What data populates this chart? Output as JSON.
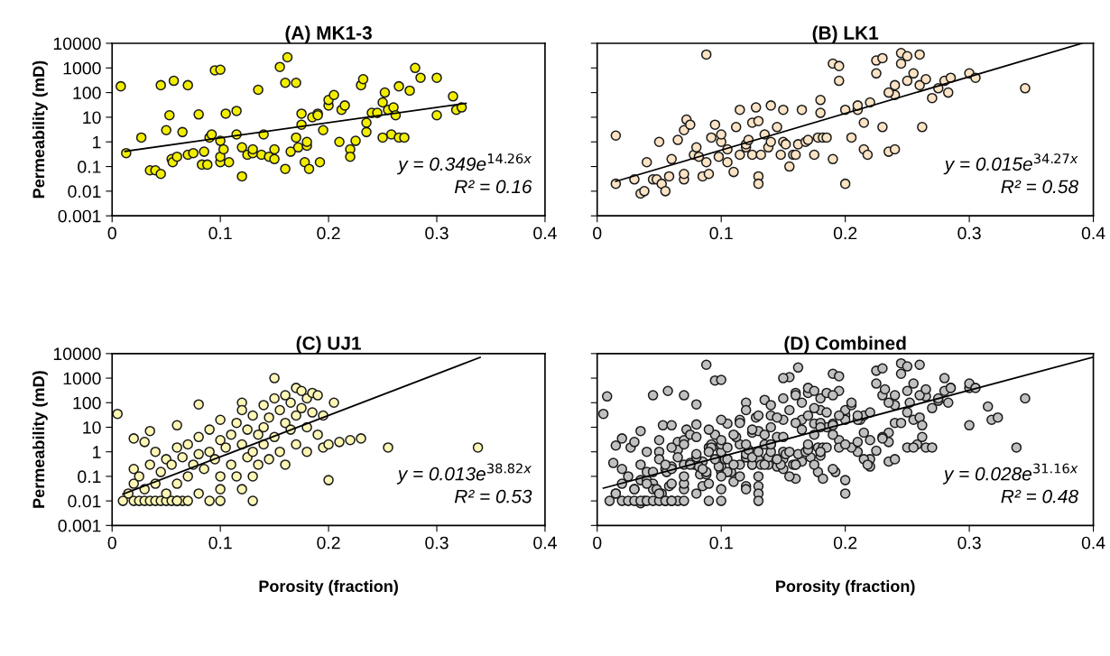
{
  "chart_data": [
    {
      "type": "scatter",
      "title": "(A) MK1-3",
      "ylabel": "Permeability (mD)",
      "log": "y",
      "xlim": [
        0,
        0.4
      ],
      "xticks": [
        0,
        0.1,
        0.2,
        0.3,
        0.4
      ],
      "ylim": [
        0.001,
        10000
      ],
      "yticks": [
        0.001,
        0.01,
        0.1,
        1,
        10,
        100,
        1000,
        10000
      ],
      "annotations": [
        "y = 0.349e$^{14.26x}$",
        "R² = 0.16"
      ],
      "series": [
        {
          "marker": "circle",
          "color": "#f2ee00",
          "x": [
            0.008,
            0.013,
            0.027,
            0.035,
            0.04,
            0.045,
            0.045,
            0.05,
            0.053,
            0.055,
            0.056,
            0.057,
            0.06,
            0.065,
            0.07,
            0.07,
            0.075,
            0.08,
            0.083,
            0.085,
            0.088,
            0.09,
            0.092,
            0.095,
            0.1,
            0.1,
            0.1,
            0.1,
            0.103,
            0.105,
            0.108,
            0.115,
            0.115,
            0.12,
            0.12,
            0.125,
            0.13,
            0.13,
            0.135,
            0.138,
            0.14,
            0.145,
            0.15,
            0.15,
            0.155,
            0.16,
            0.16,
            0.162,
            0.165,
            0.17,
            0.17,
            0.172,
            0.175,
            0.175,
            0.178,
            0.18,
            0.18,
            0.182,
            0.185,
            0.19,
            0.19,
            0.192,
            0.195,
            0.2,
            0.2,
            0.205,
            0.21,
            0.212,
            0.215,
            0.22,
            0.22,
            0.225,
            0.23,
            0.232,
            0.235,
            0.235,
            0.24,
            0.245,
            0.25,
            0.252,
            0.255,
            0.258,
            0.26,
            0.262,
            0.265,
            0.265,
            0.27,
            0.275,
            0.28,
            0.285,
            0.3,
            0.3,
            0.315,
            0.318,
            0.323,
            0.25
          ],
          "values": [
            180,
            0.35,
            1.5,
            0.07,
            0.07,
            200,
            0.05,
            3,
            12,
            0.2,
            0.15,
            300,
            0.25,
            2.5,
            0.3,
            200,
            0.35,
            13,
            0.12,
            0.4,
            0.12,
            1.5,
            2,
            800,
            850,
            1.1,
            0.15,
            0.25,
            0.5,
            14,
            0.15,
            18,
            2,
            0.04,
            0.6,
            0.3,
            0.35,
            0.5,
            130,
            0.3,
            2,
            0.25,
            0.2,
            0.5,
            1100,
            0.08,
            250,
            2700,
            0.4,
            1.5,
            250,
            0.6,
            5,
            14,
            0.15,
            0.7,
            1,
            0.08,
            10,
            14,
            12,
            0.15,
            3,
            30,
            50,
            80,
            1,
            20,
            30,
            0.5,
            0.25,
            1.1,
            200,
            350,
            6,
            2.5,
            15,
            15,
            40,
            100,
            20,
            2,
            25,
            12,
            180,
            1.5,
            1.5,
            120,
            1000,
            400,
            400,
            12,
            70,
            20,
            25,
            1.5
          ]
        },
        {
          "type": "line",
          "color": "#000000",
          "x": [
            0.012,
            0.327
          ],
          "values": [
            0.414,
            37.0
          ]
        }
      ]
    },
    {
      "type": "scatter",
      "title": "(B) LK1",
      "log": "y",
      "tick_labels": "x",
      "xlim": [
        0,
        0.4
      ],
      "xticks": [
        0,
        0.1,
        0.2,
        0.3,
        0.4
      ],
      "ylim": [
        0.001,
        10000
      ],
      "yticks": [
        0.001,
        0.01,
        0.1,
        1,
        10,
        100,
        1000,
        10000
      ],
      "annotations": [
        "y = 0.015e$^{34.27x}$",
        "R² = 0.58"
      ],
      "series": [
        {
          "marker": "circle",
          "color": "#fbe3c4",
          "x": [
            0.015,
            0.015,
            0.03,
            0.035,
            0.038,
            0.04,
            0.045,
            0.048,
            0.05,
            0.052,
            0.055,
            0.058,
            0.06,
            0.065,
            0.07,
            0.07,
            0.07,
            0.072,
            0.075,
            0.078,
            0.08,
            0.082,
            0.085,
            0.088,
            0.088,
            0.09,
            0.092,
            0.095,
            0.098,
            0.1,
            0.1,
            0.105,
            0.105,
            0.11,
            0.112,
            0.115,
            0.115,
            0.12,
            0.12,
            0.122,
            0.125,
            0.125,
            0.128,
            0.13,
            0.13,
            0.13,
            0.132,
            0.135,
            0.138,
            0.14,
            0.14,
            0.145,
            0.148,
            0.15,
            0.15,
            0.152,
            0.155,
            0.158,
            0.16,
            0.162,
            0.165,
            0.168,
            0.17,
            0.175,
            0.178,
            0.18,
            0.18,
            0.182,
            0.185,
            0.19,
            0.19,
            0.195,
            0.195,
            0.2,
            0.2,
            0.205,
            0.21,
            0.21,
            0.215,
            0.215,
            0.218,
            0.22,
            0.225,
            0.225,
            0.23,
            0.23,
            0.235,
            0.24,
            0.24,
            0.24,
            0.245,
            0.245,
            0.25,
            0.25,
            0.255,
            0.26,
            0.262,
            0.265,
            0.27,
            0.275,
            0.28,
            0.283,
            0.285,
            0.3,
            0.305,
            0.345,
            0.26,
            0.235
          ],
          "values": [
            1.8,
            0.02,
            0.03,
            0.008,
            0.01,
            0.15,
            0.03,
            0.03,
            1,
            0.02,
            0.01,
            0.04,
            0.2,
            1.2,
            0.03,
            0.05,
            3,
            8,
            5,
            0.3,
            0.6,
            0.25,
            0.04,
            0.15,
            3500,
            0.05,
            1.5,
            5,
            0.25,
            1,
            2,
            0.5,
            0.15,
            0.06,
            4,
            20,
            0.3,
            0.6,
            0.8,
            1.2,
            6,
            0.3,
            25,
            7,
            0.04,
            0.02,
            0.3,
            2,
            0.6,
            30,
            1,
            4,
            0.3,
            20,
            1,
            0.8,
            0.1,
            0.3,
            0.3,
            0.8,
            20,
            1,
            1.2,
            0.3,
            1.5,
            15,
            50,
            1.5,
            1.5,
            0.2,
            1500,
            300,
            1200,
            0.02,
            20,
            1.5,
            20,
            30,
            6,
            0.5,
            0.3,
            40,
            600,
            2000,
            2500,
            4,
            0.4,
            0.5,
            80,
            200,
            1500,
            4000,
            3000,
            300,
            600,
            200,
            4,
            350,
            60,
            150,
            300,
            100,
            400,
            600,
            400,
            150,
            3500,
            100
          ]
        },
        {
          "type": "line",
          "color": "#000000",
          "x": [
            0.015,
            0.391
          ],
          "values": [
            0.025,
            10000
          ]
        }
      ]
    },
    {
      "type": "scatter",
      "title": "(C) UJ1",
      "xlabel": "Porosity (fraction)",
      "ylabel": "Permeability (mD)",
      "log": "y",
      "xlim": [
        0,
        0.4
      ],
      "xticks": [
        0,
        0.1,
        0.2,
        0.3,
        0.4
      ],
      "ylim": [
        0.001,
        10000
      ],
      "yticks": [
        0.001,
        0.01,
        0.1,
        1,
        10,
        100,
        1000,
        10000
      ],
      "annotations": [
        "y = 0.013e$^{38.82x}$",
        "R² = 0.53"
      ],
      "series": [
        {
          "marker": "circle",
          "color": "#fdf6b4",
          "x": [
            0.02,
            0.025,
            0.03,
            0.035,
            0.04,
            0.045,
            0.05,
            0.055,
            0.06,
            0.065,
            0.07,
            0.09,
            0.1,
            0.015,
            0.02,
            0.02,
            0.02,
            0.025,
            0.03,
            0.03,
            0.035,
            0.035,
            0.04,
            0.04,
            0.045,
            0.05,
            0.05,
            0.055,
            0.06,
            0.06,
            0.06,
            0.065,
            0.07,
            0.07,
            0.075,
            0.08,
            0.08,
            0.08,
            0.085,
            0.09,
            0.09,
            0.095,
            0.1,
            0.1,
            0.1,
            0.105,
            0.11,
            0.11,
            0.115,
            0.115,
            0.12,
            0.12,
            0.12,
            0.125,
            0.125,
            0.13,
            0.13,
            0.13,
            0.135,
            0.135,
            0.14,
            0.14,
            0.14,
            0.145,
            0.145,
            0.15,
            0.15,
            0.15,
            0.155,
            0.155,
            0.16,
            0.16,
            0.16,
            0.165,
            0.165,
            0.17,
            0.17,
            0.17,
            0.175,
            0.175,
            0.18,
            0.18,
            0.18,
            0.185,
            0.185,
            0.19,
            0.19,
            0.195,
            0.195,
            0.2,
            0.2,
            0.205,
            0.21,
            0.22,
            0.23,
            0.255,
            0.338,
            0.005,
            0.01,
            0.06,
            0.08,
            0.1,
            0.12,
            0.13
          ],
          "values": [
            0.01,
            0.01,
            0.01,
            0.01,
            0.01,
            0.01,
            0.01,
            0.01,
            0.01,
            0.01,
            0.01,
            0.01,
            0.01,
            0.02,
            0.05,
            0.2,
            3.5,
            0.1,
            2.5,
            0.03,
            7,
            0.3,
            0.05,
            1,
            0.15,
            0.5,
            0.02,
            0.3,
            12,
            1.5,
            0.05,
            0.6,
            2,
            0.1,
            0.3,
            85,
            4,
            0.8,
            0.2,
            1,
            8,
            0.5,
            3,
            20,
            0.1,
            1.5,
            5,
            0.3,
            15,
            0.1,
            2,
            100,
            50,
            0.6,
            8,
            30,
            1,
            0.1,
            5,
            0.3,
            80,
            10,
            2,
            0.5,
            25,
            1000,
            150,
            4,
            50,
            1,
            200,
            15,
            0.3,
            8,
            100,
            400,
            30,
            2,
            300,
            60,
            150,
            10,
            1,
            250,
            40,
            200,
            5,
            30,
            1.5,
            0.07,
            2,
            100,
            2.5,
            3,
            3.5,
            1.5,
            1.5,
            35,
            0.01,
            0.01,
            0.02,
            0.03,
            0.03,
            0.01
          ]
        },
        {
          "type": "line",
          "color": "#000000",
          "x": [
            0.01,
            0.34
          ],
          "values": [
            0.019,
            7000
          ]
        }
      ]
    },
    {
      "type": "scatter",
      "title": "(D) Combined",
      "xlabel": "Porosity (fraction)",
      "log": "y",
      "tick_labels": "x",
      "xlim": [
        0,
        0.4
      ],
      "xticks": [
        0,
        0.1,
        0.2,
        0.3,
        0.4
      ],
      "ylim": [
        0.001,
        10000
      ],
      "yticks": [
        0.001,
        0.01,
        0.1,
        1,
        10,
        100,
        1000,
        10000
      ],
      "annotations": [
        "y = 0.028e$^{31.16x}$",
        "R² = 0.48"
      ],
      "series": [
        {
          "marker": "circle",
          "color": "#c0c0c0",
          "x": [
            0.008,
            0.013,
            0.027,
            0.035,
            0.04,
            0.045,
            0.045,
            0.05,
            0.053,
            0.055,
            0.056,
            0.057,
            0.06,
            0.065,
            0.07,
            0.07,
            0.075,
            0.08,
            0.083,
            0.085,
            0.088,
            0.09,
            0.092,
            0.095,
            0.1,
            0.1,
            0.1,
            0.1,
            0.103,
            0.105,
            0.108,
            0.115,
            0.115,
            0.12,
            0.12,
            0.125,
            0.13,
            0.135,
            0.138,
            0.14,
            0.145,
            0.15,
            0.15,
            0.155,
            0.16,
            0.16,
            0.162,
            0.165,
            0.17,
            0.17,
            0.172,
            0.175,
            0.175,
            0.178,
            0.18,
            0.18,
            0.182,
            0.185,
            0.19,
            0.19,
            0.192,
            0.195,
            0.2,
            0.2,
            0.205,
            0.21,
            0.212,
            0.215,
            0.22,
            0.22,
            0.225,
            0.23,
            0.232,
            0.235,
            0.235,
            0.24,
            0.245,
            0.25,
            0.252,
            0.255,
            0.258,
            0.26,
            0.262,
            0.265,
            0.265,
            0.27,
            0.275,
            0.28,
            0.285,
            0.3,
            0.3,
            0.315,
            0.318,
            0.323,
            0.25,
            0.015,
            0.015,
            0.03,
            0.035,
            0.038,
            0.04,
            0.045,
            0.048,
            0.05,
            0.052,
            0.055,
            0.058,
            0.06,
            0.065,
            0.07,
            0.07,
            0.07,
            0.072,
            0.075,
            0.078,
            0.08,
            0.082,
            0.085,
            0.088,
            0.088,
            0.09,
            0.092,
            0.095,
            0.098,
            0.1,
            0.1,
            0.105,
            0.105,
            0.11,
            0.112,
            0.115,
            0.115,
            0.12,
            0.12,
            0.122,
            0.125,
            0.125,
            0.128,
            0.13,
            0.13,
            0.13,
            0.132,
            0.135,
            0.138,
            0.14,
            0.14,
            0.145,
            0.148,
            0.15,
            0.15,
            0.152,
            0.155,
            0.158,
            0.16,
            0.162,
            0.165,
            0.168,
            0.17,
            0.175,
            0.178,
            0.18,
            0.18,
            0.182,
            0.185,
            0.19,
            0.19,
            0.195,
            0.195,
            0.2,
            0.2,
            0.205,
            0.21,
            0.21,
            0.215,
            0.215,
            0.218,
            0.22,
            0.225,
            0.225,
            0.23,
            0.23,
            0.235,
            0.24,
            0.24,
            0.24,
            0.245,
            0.245,
            0.25,
            0.25,
            0.255,
            0.26,
            0.262,
            0.265,
            0.27,
            0.275,
            0.28,
            0.283,
            0.285,
            0.3,
            0.305,
            0.345,
            0.26,
            0.235,
            0.02,
            0.025,
            0.03,
            0.035,
            0.04,
            0.045,
            0.05,
            0.055,
            0.06,
            0.065,
            0.07,
            0.09,
            0.1,
            0.015,
            0.02,
            0.02,
            0.02,
            0.025,
            0.03,
            0.03,
            0.035,
            0.035,
            0.04,
            0.04,
            0.045,
            0.05,
            0.05,
            0.055,
            0.06,
            0.06,
            0.06,
            0.065,
            0.07,
            0.07,
            0.075,
            0.08,
            0.08,
            0.08,
            0.085,
            0.09,
            0.09,
            0.095,
            0.1,
            0.1,
            0.1,
            0.105,
            0.11,
            0.11,
            0.115,
            0.115,
            0.12,
            0.12,
            0.12,
            0.125,
            0.125,
            0.13,
            0.13,
            0.13,
            0.135,
            0.135,
            0.14,
            0.14,
            0.14,
            0.145,
            0.145,
            0.15,
            0.15,
            0.15,
            0.155,
            0.155,
            0.16,
            0.16,
            0.16,
            0.165,
            0.165,
            0.17,
            0.17,
            0.17,
            0.175,
            0.175,
            0.18,
            0.18,
            0.18,
            0.185,
            0.185,
            0.19,
            0.19,
            0.195,
            0.195,
            0.2,
            0.2,
            0.205,
            0.21,
            0.22,
            0.23,
            0.255,
            0.338,
            0.005,
            0.01,
            0.06,
            0.08,
            0.1,
            0.12,
            0.13
          ],
          "values": [
            180,
            0.35,
            1.5,
            0.07,
            0.07,
            200,
            0.05,
            3,
            12,
            0.2,
            0.15,
            300,
            0.25,
            2.5,
            0.3,
            200,
            0.35,
            13,
            0.12,
            0.4,
            0.12,
            1.5,
            2,
            800,
            850,
            1.1,
            0.15,
            0.25,
            0.5,
            14,
            0.15,
            18,
            2,
            0.04,
            0.6,
            0.3,
            0.5,
            130,
            0.3,
            2,
            0.25,
            0.2,
            0.5,
            1100,
            0.08,
            250,
            2700,
            0.4,
            1.5,
            250,
            0.6,
            5,
            14,
            0.15,
            0.7,
            1,
            0.08,
            10,
            14,
            12,
            0.15,
            3,
            30,
            50,
            80,
            1,
            20,
            30,
            0.5,
            0.25,
            1.1,
            200,
            350,
            6,
            2.5,
            15,
            15,
            40,
            100,
            20,
            2,
            25,
            12,
            180,
            1.5,
            1.5,
            120,
            1000,
            400,
            400,
            12,
            70,
            20,
            25,
            1.5,
            1.8,
            0.02,
            0.03,
            0.008,
            0.01,
            0.15,
            0.03,
            0.03,
            1,
            0.02,
            0.01,
            0.04,
            0.2,
            1.2,
            0.03,
            0.05,
            3,
            8,
            5,
            0.3,
            0.6,
            0.25,
            0.04,
            0.15,
            3500,
            0.05,
            1.5,
            5,
            0.25,
            1,
            2,
            0.5,
            0.15,
            0.06,
            4,
            20,
            0.3,
            0.6,
            0.8,
            1.2,
            6,
            0.3,
            25,
            7,
            0.04,
            0.02,
            0.3,
            2,
            0.6,
            30,
            1,
            4,
            0.3,
            20,
            1,
            0.8,
            0.1,
            0.3,
            0.3,
            0.8,
            20,
            1,
            1.2,
            0.3,
            1.5,
            15,
            50,
            1.5,
            1.5,
            0.2,
            1500,
            300,
            1200,
            0.02,
            20,
            1.5,
            20,
            30,
            6,
            0.5,
            0.3,
            40,
            600,
            2000,
            2500,
            4,
            0.4,
            0.5,
            80,
            200,
            1500,
            4000,
            3000,
            300,
            600,
            200,
            4,
            350,
            60,
            150,
            300,
            100,
            400,
            600,
            400,
            150,
            3500,
            100,
            0.01,
            0.01,
            0.01,
            0.01,
            0.01,
            0.01,
            0.01,
            0.01,
            0.01,
            0.01,
            0.01,
            0.01,
            0.01,
            0.02,
            0.05,
            0.2,
            3.5,
            0.1,
            2.5,
            0.03,
            7,
            0.3,
            0.05,
            1,
            0.15,
            0.5,
            0.02,
            0.3,
            12,
            1.5,
            0.05,
            0.6,
            2,
            0.1,
            0.3,
            85,
            4,
            0.8,
            0.2,
            1,
            8,
            0.5,
            3,
            20,
            0.1,
            1.5,
            5,
            0.3,
            15,
            0.1,
            2,
            100,
            50,
            0.6,
            8,
            30,
            1,
            0.1,
            5,
            0.3,
            80,
            10,
            2,
            0.5,
            25,
            1000,
            150,
            4,
            50,
            1,
            200,
            15,
            0.3,
            8,
            100,
            400,
            30,
            2,
            300,
            60,
            150,
            10,
            1,
            250,
            40,
            200,
            5,
            30,
            1.5,
            0.07,
            2,
            100,
            2.5,
            3,
            3.5,
            1.5,
            1.5,
            35,
            0.01,
            0.01,
            0.02,
            0.03,
            0.03,
            0.01
          ]
        },
        {
          "type": "line",
          "color": "#000000",
          "x": [
            0.005,
            0.4
          ],
          "values": [
            0.033,
            7230
          ]
        }
      ]
    }
  ]
}
